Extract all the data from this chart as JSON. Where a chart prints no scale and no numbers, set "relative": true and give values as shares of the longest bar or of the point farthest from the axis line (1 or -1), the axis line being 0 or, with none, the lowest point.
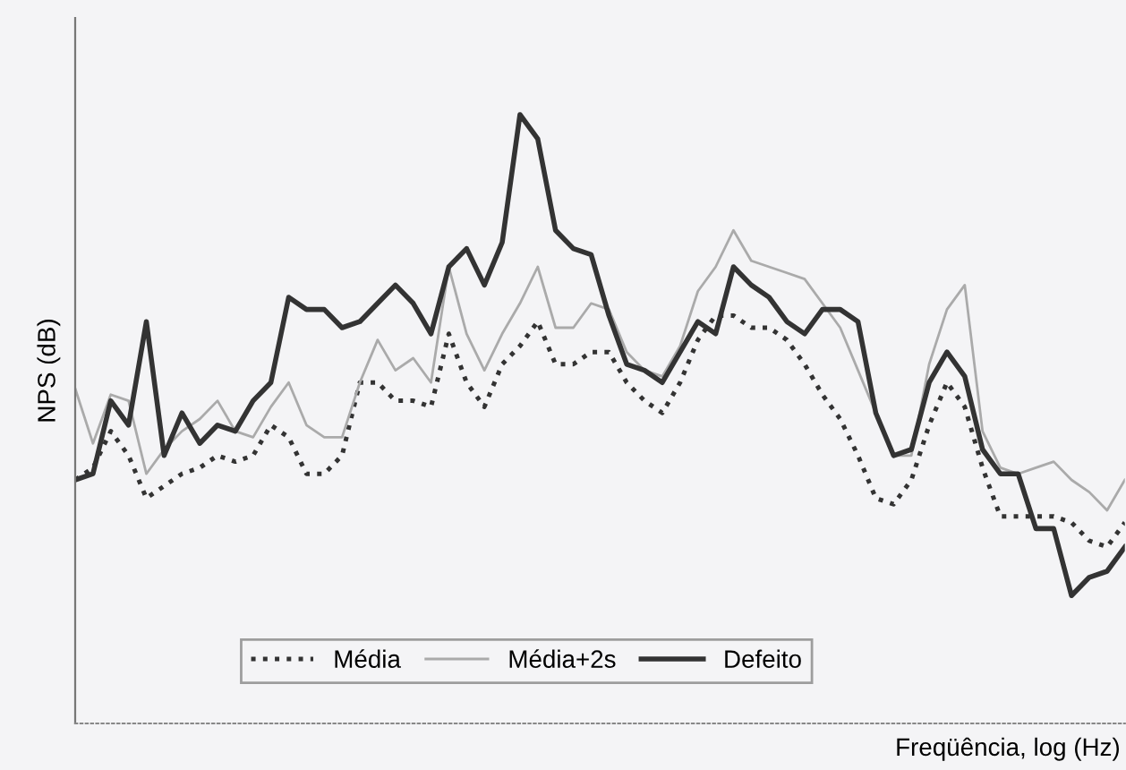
{
  "chart_data": {
    "type": "line",
    "relative": true,
    "ylabel": "NPS (dB)",
    "xlabel": "Freqüência, log (Hz)",
    "legend": "bottom",
    "grid": false,
    "marker": "none",
    "categories": [
      null,
      null,
      null,
      null,
      null,
      null,
      null,
      null,
      null,
      null,
      null,
      null,
      null,
      null,
      null,
      null,
      null,
      null,
      null,
      null,
      null,
      null,
      null,
      null,
      null,
      null,
      null,
      null,
      null,
      null,
      null,
      null,
      null,
      null,
      null,
      null,
      null,
      null,
      null,
      null,
      null,
      null,
      null,
      null,
      null,
      null,
      null,
      null,
      null,
      null,
      null,
      null,
      null,
      null,
      null,
      null,
      null,
      null,
      null,
      null
    ],
    "series": [
      {
        "name": "Média",
        "color": "#333333",
        "line_style": "dotted",
        "values": [
          0.4,
          0.42,
          0.48,
          0.44,
          0.37,
          0.39,
          0.41,
          0.42,
          0.44,
          0.43,
          0.44,
          0.49,
          0.47,
          0.41,
          0.41,
          0.44,
          0.56,
          0.56,
          0.53,
          0.53,
          0.52,
          0.64,
          0.56,
          0.52,
          0.59,
          0.62,
          0.66,
          0.59,
          0.59,
          0.61,
          0.61,
          0.56,
          0.53,
          0.51,
          0.56,
          0.63,
          0.67,
          0.67,
          0.65,
          0.65,
          0.63,
          0.59,
          0.54,
          0.5,
          0.44,
          0.37,
          0.36,
          0.4,
          0.49,
          0.56,
          0.52,
          0.42,
          0.34,
          0.34,
          0.34,
          0.34,
          0.33,
          0.3,
          0.29,
          0.33
        ]
      },
      {
        "name": "Média+2s",
        "color": "#aaaaaa",
        "line_style": "solid",
        "values": [
          0.55,
          0.46,
          0.54,
          0.53,
          0.41,
          0.45,
          0.48,
          0.5,
          0.53,
          0.48,
          0.47,
          0.52,
          0.56,
          0.49,
          0.47,
          0.47,
          0.56,
          0.63,
          0.58,
          0.6,
          0.56,
          0.75,
          0.64,
          0.58,
          0.64,
          0.69,
          0.75,
          0.65,
          0.65,
          0.69,
          0.68,
          0.61,
          0.58,
          0.57,
          0.62,
          0.71,
          0.75,
          0.81,
          0.76,
          0.75,
          0.74,
          0.73,
          0.69,
          0.65,
          0.58,
          0.51,
          0.44,
          0.44,
          0.59,
          0.68,
          0.72,
          0.48,
          0.42,
          0.41,
          0.42,
          0.43,
          0.4,
          0.38,
          0.35,
          0.4
        ]
      },
      {
        "name": "Defeito",
        "color": "#333333",
        "line_style": "solid",
        "values": [
          0.4,
          0.41,
          0.53,
          0.49,
          0.66,
          0.44,
          0.51,
          0.46,
          0.49,
          0.48,
          0.53,
          0.56,
          0.7,
          0.68,
          0.68,
          0.65,
          0.66,
          0.69,
          0.72,
          0.69,
          0.64,
          0.75,
          0.78,
          0.72,
          0.79,
          1,
          0.96,
          0.81,
          0.78,
          0.77,
          0.67,
          0.59,
          0.58,
          0.56,
          0.61,
          0.66,
          0.64,
          0.75,
          0.72,
          0.7,
          0.66,
          0.64,
          0.68,
          0.68,
          0.66,
          0.51,
          0.44,
          0.45,
          0.56,
          0.61,
          0.57,
          0.45,
          0.41,
          0.41,
          0.32,
          0.32,
          0.21,
          0.24,
          0.25,
          0.29
        ]
      }
    ]
  }
}
